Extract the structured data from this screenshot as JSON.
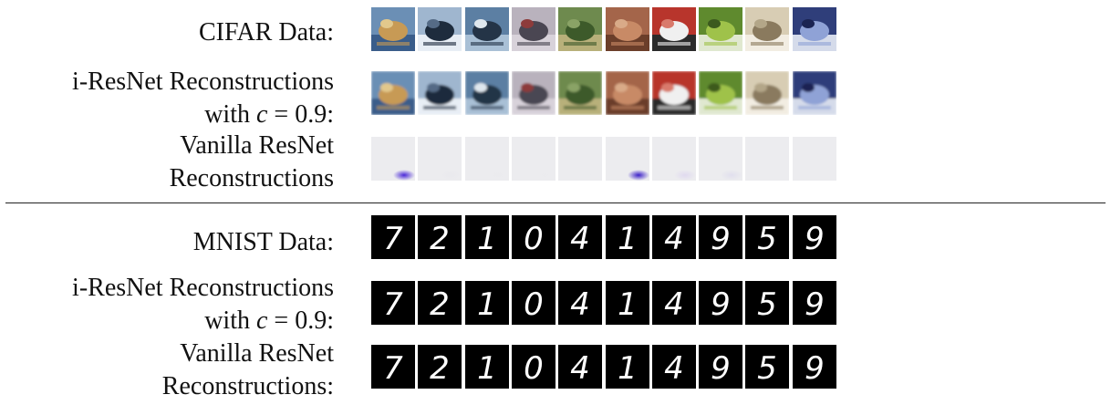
{
  "rows": [
    {
      "label_lines": [
        "CIFAR Data:"
      ],
      "kind": "cifar-original"
    },
    {
      "label_lines": [
        "i-ResNet Reconstructions",
        "with ",
        "c",
        " = 0.9:"
      ],
      "kind": "cifar-iresnet"
    },
    {
      "label_lines": [
        "Vanilla ResNet",
        "Reconstructions"
      ],
      "kind": "cifar-vanilla"
    },
    {
      "label_lines": [
        "MNIST Data:"
      ],
      "kind": "mnist-original"
    },
    {
      "label_lines": [
        "i-ResNet Reconstructions",
        "with ",
        "c",
        " = 0.9:"
      ],
      "kind": "mnist-iresnet"
    },
    {
      "label_lines": [
        "Vanilla ResNet",
        "Reconstructions:"
      ],
      "kind": "mnist-vanilla"
    }
  ],
  "cifar_images": [
    {
      "subject": "cat",
      "colors": [
        "#6b8fb5",
        "#c79a55",
        "#3a5d8a",
        "#e2c88c"
      ]
    },
    {
      "subject": "ship",
      "colors": [
        "#9fb6cf",
        "#1e2c3d",
        "#e8eef5",
        "#556b86"
      ]
    },
    {
      "subject": "ship",
      "colors": [
        "#5c7fa3",
        "#243447",
        "#a9c0d6",
        "#dfe7ee"
      ]
    },
    {
      "subject": "airplane",
      "colors": [
        "#b9b2bd",
        "#4a4652",
        "#d8d2da",
        "#8d3b3b"
      ]
    },
    {
      "subject": "frog",
      "colors": [
        "#6e8a4e",
        "#3d5a2a",
        "#b8b07a",
        "#8aa366"
      ]
    },
    {
      "subject": "frog",
      "colors": [
        "#a4654a",
        "#c88a66",
        "#6b3e2a",
        "#d9aa88"
      ]
    },
    {
      "subject": "automobile",
      "colors": [
        "#b8352c",
        "#f0f0f0",
        "#2b2b2b",
        "#d97a6c"
      ]
    },
    {
      "subject": "frog",
      "colors": [
        "#5f8a2e",
        "#9fc24a",
        "#e0e8d0",
        "#3c5a1e"
      ]
    },
    {
      "subject": "cat",
      "colors": [
        "#d8cdb4",
        "#8a7a5e",
        "#f2ede2",
        "#b3a688"
      ]
    },
    {
      "subject": "automobile",
      "colors": [
        "#2f3e7a",
        "#8fa2d6",
        "#d5dbea",
        "#1b2452"
      ]
    }
  ],
  "vanilla_blobs": [
    {
      "color": "#4b2ad8",
      "strength": 1.0
    },
    {
      "color": "#d4d2e6",
      "strength": 0.1
    },
    {
      "color": "#d7d7e2",
      "strength": 0.05
    },
    {
      "color": "#dcdce6",
      "strength": 0.05
    },
    {
      "color": "#e0e0ea",
      "strength": 0.05
    },
    {
      "color": "#3d22c8",
      "strength": 1.0
    },
    {
      "color": "#c9b8ee",
      "strength": 0.35
    },
    {
      "color": "#c6c0ea",
      "strength": 0.3
    },
    {
      "color": "#e1e1ea",
      "strength": 0.03
    },
    {
      "color": "#e2e2ea",
      "strength": 0.03
    }
  ],
  "mnist_digits": [
    "7",
    "2",
    "1",
    "0",
    "4",
    "1",
    "4",
    "9",
    "5",
    "9"
  ]
}
